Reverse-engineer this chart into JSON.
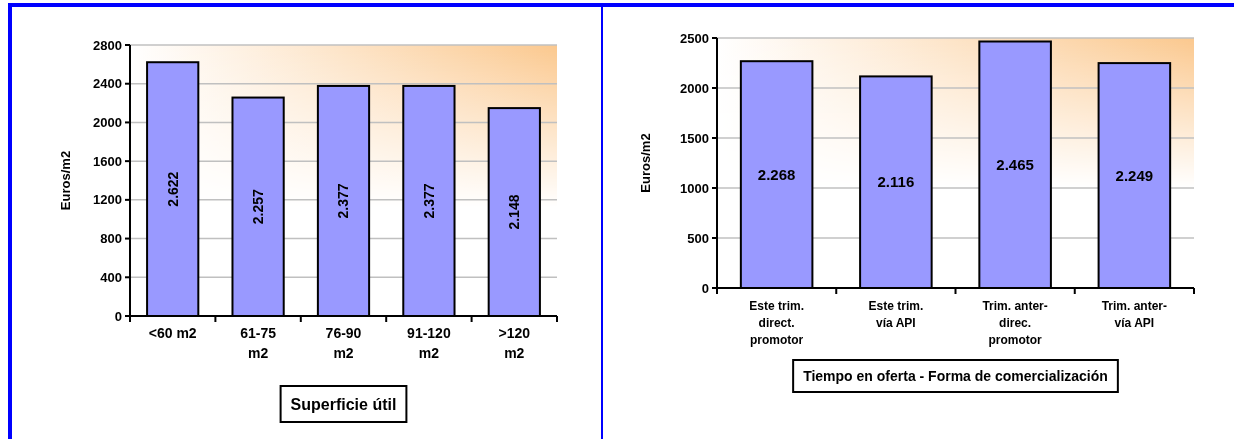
{
  "chart_data": [
    {
      "type": "bar",
      "categories": [
        "<60 m2",
        "61-75 m2",
        "76-90 m2",
        "91-120 m2",
        ">120 m2"
      ],
      "values": [
        2622,
        2257,
        2377,
        2377,
        2148
      ],
      "value_labels": [
        "2.622",
        "2.257",
        "2.377",
        "2.377",
        "2.148"
      ],
      "color": "#9999ff",
      "xlabel": "Superficie útil",
      "ylabel": "Euros/m2",
      "ylim": [
        0,
        2800
      ],
      "yticks": [
        0,
        400,
        800,
        1200,
        1600,
        2000,
        2400,
        2800
      ],
      "grid": "y"
    },
    {
      "type": "bar",
      "categories": [
        "Este trim. direct. promotor",
        "Este trim. vía API",
        "Trim. anter-direc. promotor",
        "Trim. anter-vía API"
      ],
      "values": [
        2268,
        2116,
        2465,
        2249
      ],
      "value_labels": [
        "2.268",
        "2.116",
        "2.465",
        "2.249"
      ],
      "color": "#9999ff",
      "xlabel": "Tiempo en oferta - Forma de comercialización",
      "ylabel": "Euros/m2",
      "ylim": [
        0,
        2500
      ],
      "yticks": [
        0,
        500,
        1000,
        1500,
        2000,
        2500
      ],
      "grid": "y"
    }
  ]
}
